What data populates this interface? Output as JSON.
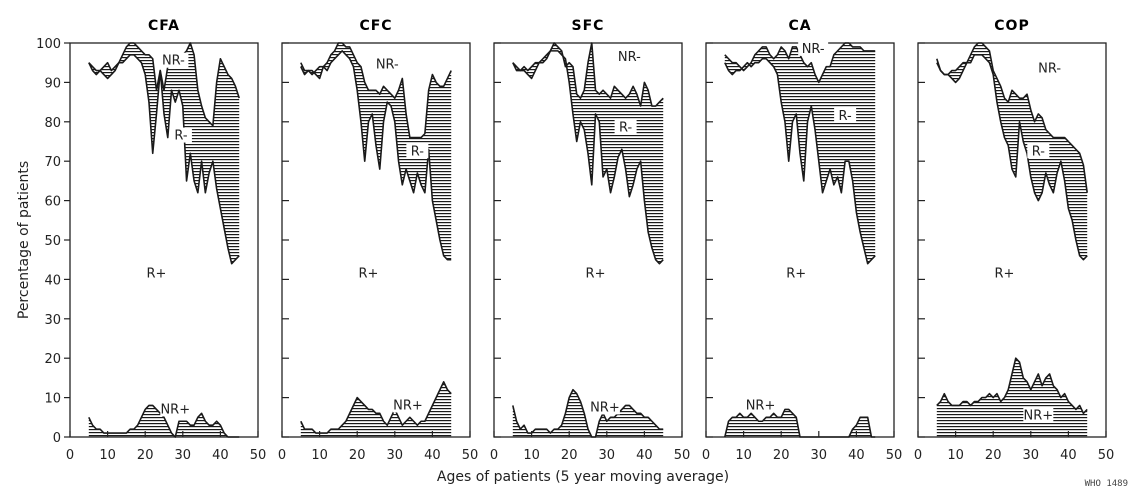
{
  "chart_data": {
    "type": "area",
    "ylabel": "Percentage of patients",
    "xlabel": "Ages of patients (5 year moving average)",
    "xlim": [
      0,
      50
    ],
    "ylim": [
      0,
      100
    ],
    "xticks": [
      0,
      10,
      20,
      30,
      40,
      50
    ],
    "yticks": [
      0,
      10,
      20,
      30,
      40,
      50,
      60,
      70,
      80,
      90,
      100
    ],
    "grid": false,
    "credit": "WHO 1489",
    "x": [
      5,
      6,
      7,
      8,
      9,
      10,
      11,
      12,
      13,
      14,
      15,
      16,
      17,
      18,
      19,
      20,
      21,
      22,
      23,
      24,
      25,
      26,
      27,
      28,
      29,
      30,
      31,
      32,
      33,
      34,
      35,
      36,
      37,
      38,
      39,
      40,
      41,
      42,
      43,
      44,
      45
    ],
    "panels": [
      {
        "title": "CFA",
        "region_labels": [
          {
            "text": "NR-",
            "x": 27.5,
            "y": 95
          },
          {
            "text": "R-",
            "x": 29.5,
            "y": 76
          },
          {
            "text": "R+",
            "x": 23,
            "y": 41
          },
          {
            "text": "NR+",
            "x": 28,
            "y": 6.5
          }
        ],
        "series": [
          {
            "name": "NR+",
            "values": [
              5,
              3,
              2,
              2,
              1,
              1,
              1,
              1,
              1,
              1,
              1,
              2,
              2,
              3,
              5,
              7,
              8,
              8,
              7,
              6,
              5,
              3,
              1,
              0,
              4,
              4,
              4,
              3,
              3,
              5,
              6,
              4,
              3,
              3,
              4,
              3,
              1,
              0,
              0,
              0,
              0
            ]
          },
          {
            "name": "R-",
            "values": [
              95,
              93,
              92,
              93,
              94,
              95,
              93,
              94,
              95,
              95,
              96,
              97,
              97,
              96,
              95,
              92,
              85,
              72,
              82,
              93,
              82,
              76,
              88,
              85,
              88,
              84,
              65,
              72,
              65,
              62,
              70,
              62,
              67,
              70,
              63,
              58,
              53,
              48,
              44,
              45,
              46
            ]
          },
          {
            "name": "NR-",
            "values": [
              95,
              94,
              93,
              93,
              92,
              91,
              92,
              93,
              95,
              97,
              99,
              100,
              100,
              99,
              98,
              97,
              97,
              96,
              88,
              93,
              88,
              94,
              96,
              97,
              97,
              97,
              98,
              100,
              97,
              88,
              84,
              81,
              80,
              79,
              90,
              96,
              94,
              92,
              91,
              89,
              86
            ]
          }
        ]
      },
      {
        "title": "CFC",
        "region_labels": [
          {
            "text": "NR-",
            "x": 28,
            "y": 94
          },
          {
            "text": "R-",
            "x": 36,
            "y": 72
          },
          {
            "text": "R+",
            "x": 23,
            "y": 41
          },
          {
            "text": "NR+",
            "x": 33.5,
            "y": 7.5
          }
        ],
        "series": [
          {
            "name": "NR+",
            "values": [
              4,
              2,
              2,
              2,
              1,
              1,
              1,
              1,
              2,
              2,
              2,
              3,
              4,
              6,
              8,
              10,
              9,
              8,
              7,
              7,
              6,
              6,
              4,
              3,
              5,
              7,
              5,
              3,
              4,
              5,
              4,
              3,
              4,
              4,
              6,
              8,
              10,
              12,
              14,
              12,
              11
            ]
          },
          {
            "name": "R-",
            "values": [
              95,
              93,
              93,
              92,
              93,
              94,
              94,
              93,
              95,
              96,
              97,
              98,
              97,
              96,
              94,
              88,
              80,
              70,
              80,
              82,
              74,
              68,
              80,
              85,
              84,
              80,
              70,
              64,
              68,
              65,
              62,
              67,
              64,
              62,
              73,
              60,
              55,
              50,
              46,
              45,
              45
            ]
          },
          {
            "name": "NR-",
            "values": [
              94,
              92,
              93,
              93,
              92,
              91,
              94,
              95,
              97,
              98,
              100,
              100,
              99,
              99,
              97,
              95,
              94,
              90,
              88,
              88,
              88,
              87,
              89,
              88,
              87,
              86,
              88,
              91,
              82,
              76,
              76,
              76,
              76,
              77,
              88,
              92,
              90,
              89,
              89,
              91,
              93
            ]
          }
        ]
      },
      {
        "title": "SFC",
        "region_labels": [
          {
            "text": "NR-",
            "x": 36,
            "y": 96
          },
          {
            "text": "R-",
            "x": 35,
            "y": 78
          },
          {
            "text": "R+",
            "x": 27,
            "y": 41
          },
          {
            "text": "NR+",
            "x": 29.5,
            "y": 7
          }
        ],
        "series": [
          {
            "name": "NR+",
            "values": [
              8,
              4,
              2,
              3,
              1,
              1,
              2,
              2,
              2,
              2,
              1,
              2,
              2,
              3,
              6,
              10,
              12,
              11,
              9,
              6,
              2,
              0,
              0,
              4,
              6,
              4,
              5,
              5,
              6,
              7,
              8,
              8,
              7,
              6,
              6,
              5,
              5,
              4,
              3,
              2,
              2
            ]
          },
          {
            "name": "R-",
            "values": [
              95,
              93,
              93,
              94,
              93,
              94,
              95,
              95,
              96,
              97,
              98,
              98,
              98,
              97,
              96,
              90,
              82,
              75,
              80,
              78,
              72,
              64,
              82,
              80,
              66,
              68,
              62,
              66,
              71,
              73,
              68,
              61,
              64,
              68,
              70,
              60,
              52,
              48,
              45,
              44,
              45
            ]
          },
          {
            "name": "NR-",
            "values": [
              95,
              94,
              93,
              93,
              92,
              91,
              93,
              95,
              95,
              96,
              98,
              100,
              99,
              98,
              94,
              95,
              94,
              87,
              86,
              88,
              95,
              100,
              88,
              87,
              88,
              87,
              86,
              89,
              88,
              87,
              86,
              87,
              89,
              87,
              84,
              90,
              88,
              84,
              84,
              85,
              86
            ]
          }
        ]
      },
      {
        "title": "CA",
        "region_labels": [
          {
            "text": "NR-",
            "x": 28.5,
            "y": 98
          },
          {
            "text": "R-",
            "x": 37,
            "y": 81
          },
          {
            "text": "R+",
            "x": 24,
            "y": 41
          },
          {
            "text": "NR+",
            "x": 14.5,
            "y": 7.5
          }
        ],
        "series": [
          {
            "name": "NR+",
            "values": [
              0,
              4,
              5,
              5,
              6,
              5,
              5,
              6,
              5,
              4,
              4,
              5,
              5,
              6,
              5,
              5,
              7,
              7,
              6,
              5,
              0,
              0,
              0,
              0,
              0,
              0,
              0,
              0,
              0,
              0,
              0,
              0,
              0,
              0,
              2,
              3,
              5,
              5,
              5,
              0,
              0
            ]
          },
          {
            "name": "R-",
            "values": [
              95,
              93,
              92,
              93,
              93,
              94,
              95,
              94,
              95,
              95,
              96,
              96,
              95,
              94,
              92,
              85,
              80,
              70,
              80,
              82,
              72,
              65,
              80,
              84,
              78,
              70,
              62,
              65,
              68,
              64,
              66,
              62,
              70,
              70,
              65,
              57,
              52,
              48,
              44,
              45,
              46
            ]
          },
          {
            "name": "NR-",
            "values": [
              97,
              96,
              95,
              95,
              94,
              93,
              94,
              95,
              97,
              98,
              99,
              99,
              97,
              96,
              97,
              99,
              98,
              96,
              99,
              99,
              97,
              95,
              94,
              95,
              92,
              90,
              92,
              94,
              94,
              97,
              98,
              99,
              100,
              100,
              99,
              99,
              99,
              98,
              98,
              98,
              98
            ]
          }
        ]
      },
      {
        "title": "COP",
        "region_labels": [
          {
            "text": "NR-",
            "x": 35,
            "y": 93
          },
          {
            "text": "R-",
            "x": 32,
            "y": 72
          },
          {
            "text": "R+",
            "x": 23,
            "y": 41
          },
          {
            "text": "NR+",
            "x": 32,
            "y": 5
          }
        ],
        "series": [
          {
            "name": "NR+",
            "values": [
              8,
              9,
              11,
              9,
              8,
              8,
              8,
              9,
              9,
              8,
              9,
              9,
              10,
              10,
              11,
              10,
              11,
              9,
              10,
              12,
              16,
              20,
              19,
              15,
              14,
              12,
              14,
              16,
              13,
              15,
              16,
              13,
              12,
              10,
              11,
              9,
              8,
              7,
              8,
              6,
              7
            ]
          },
          {
            "name": "R-",
            "values": [
              96,
              93,
              92,
              92,
              93,
              93,
              94,
              95,
              95,
              95,
              97,
              97,
              97,
              96,
              95,
              92,
              85,
              80,
              76,
              74,
              68,
              66,
              80,
              75,
              72,
              66,
              62,
              60,
              62,
              67,
              64,
              62,
              67,
              70,
              65,
              58,
              55,
              50,
              46,
              45,
              46
            ]
          },
          {
            "name": "NR-",
            "values": [
              95,
              93,
              92,
              92,
              91,
              90,
              91,
              93,
              95,
              97,
              99,
              100,
              100,
              99,
              98,
              93,
              91,
              89,
              86,
              85,
              88,
              87,
              86,
              86,
              87,
              83,
              80,
              82,
              81,
              78,
              77,
              76,
              76,
              76,
              76,
              75,
              74,
              73,
              72,
              69,
              62
            ]
          }
        ]
      }
    ]
  }
}
